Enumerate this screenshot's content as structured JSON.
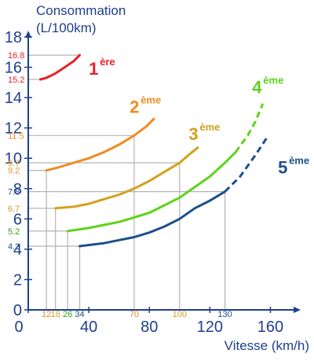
{
  "chart_data": {
    "type": "line",
    "ylabel_line1": "Consommation",
    "ylabel_line2": "(L/100km)",
    "xlabel": "Vitesse (km/h)",
    "xlim": [
      0,
      180
    ],
    "ylim": [
      0,
      18
    ],
    "x_ticks": [
      0,
      40,
      80,
      120,
      160
    ],
    "y_ticks": [
      0,
      2,
      4,
      6,
      8,
      10,
      12,
      14,
      16,
      18
    ],
    "axis_color": "#1f3f8f",
    "series": [
      {
        "name": "1ère",
        "label_num": "1",
        "label_sup": "ère",
        "color": "#e8202a",
        "x": [
          8,
          12,
          18,
          24,
          30,
          34
        ],
        "y": [
          15.2,
          15.3,
          15.6,
          16.0,
          16.4,
          16.8
        ],
        "dashed_from": null,
        "label_pos": [
          40,
          15.5
        ]
      },
      {
        "name": "2ème",
        "label_num": "2",
        "label_sup": "ème",
        "color": "#f08c1e",
        "x": [
          12,
          20,
          30,
          40,
          50,
          60,
          70,
          78,
          83
        ],
        "y": [
          9.2,
          9.4,
          9.7,
          10.0,
          10.4,
          10.9,
          11.5,
          12.1,
          12.6
        ],
        "dashed_from": null,
        "label_pos": [
          67,
          13.0
        ]
      },
      {
        "name": "3ème",
        "label_num": "3",
        "label_sup": "ème",
        "color": "#d4a020",
        "x": [
          18,
          30,
          40,
          50,
          60,
          70,
          80,
          90,
          100,
          107,
          112
        ],
        "y": [
          6.7,
          6.8,
          7.0,
          7.3,
          7.6,
          8.0,
          8.5,
          9.1,
          9.7,
          10.3,
          10.7
        ],
        "dashed_from": null,
        "label_pos": [
          106,
          11.2
        ]
      },
      {
        "name": "4ème",
        "label_num": "4",
        "label_sup": "ème",
        "color": "#5ed31a",
        "x": [
          26,
          40,
          50,
          60,
          70,
          80,
          90,
          100,
          110,
          120,
          130,
          137,
          145,
          150,
          155
        ],
        "y": [
          5.2,
          5.4,
          5.6,
          5.8,
          6.1,
          6.4,
          6.9,
          7.4,
          8.1,
          8.8,
          9.7,
          10.4,
          11.5,
          12.4,
          13.6
        ],
        "dashed_from": 137,
        "label_pos": [
          148,
          14.3
        ]
      },
      {
        "name": "5ème",
        "label_num": "5",
        "label_sup": "ème",
        "color": "#1c4f8c",
        "x": [
          34,
          50,
          60,
          70,
          80,
          90,
          100,
          110,
          120,
          130,
          140,
          150,
          158
        ],
        "y": [
          4.2,
          4.4,
          4.6,
          4.8,
          5.1,
          5.5,
          6.0,
          6.7,
          7.2,
          7.8,
          8.8,
          10.2,
          11.4
        ],
        "dashed_from": 130,
        "label_pos": [
          165,
          9.0
        ]
      }
    ],
    "reference_points": [
      {
        "x": 12,
        "y": 9.2,
        "x_label": "12",
        "y_label": "9.2",
        "color": "#f08c1e"
      },
      {
        "x": 18,
        "y": 6.7,
        "x_label": "18",
        "y_label": "6.7",
        "color": "#d4a020"
      },
      {
        "x": 26,
        "y": 5.2,
        "x_label": "26",
        "y_label": "5.2",
        "color": "#3a9a1a"
      },
      {
        "x": 34,
        "y": 4.2,
        "x_label": "34",
        "y_label": "4.2",
        "color": "#1c4f8c"
      },
      {
        "x": 70,
        "y": 11.5,
        "x_label": "70",
        "y_label": "11.5",
        "color": "#f08c1e"
      },
      {
        "x": 100,
        "y": 9.7,
        "x_label": "100",
        "y_label": "9.7",
        "color": "#d4a020"
      },
      {
        "x": 130,
        "y": 7.8,
        "x_label": "130",
        "y_label": "7.8",
        "color": "#1c4f8c"
      },
      {
        "x": 34,
        "y": 16.8,
        "x_label": "",
        "y_label": "16.8",
        "color": "#e8202a"
      },
      {
        "x": 8,
        "y": 15.2,
        "x_label": "",
        "y_label": "15.2",
        "color": "#e8202a"
      }
    ]
  }
}
